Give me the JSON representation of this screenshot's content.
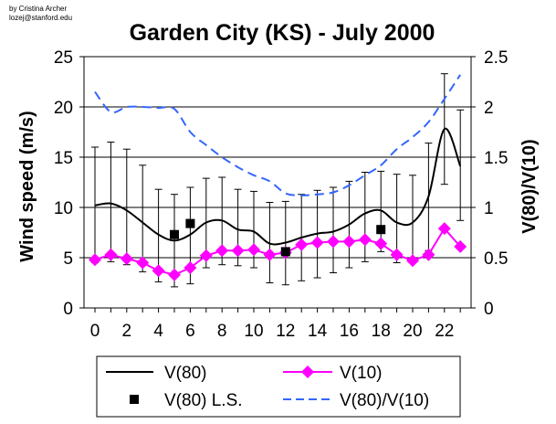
{
  "credit": [
    "by Cristina Archer",
    "lozej@stanford.edu"
  ],
  "chart_data": {
    "type": "line",
    "title": "Garden City (KS) - July 2000",
    "xlabel": "",
    "ylabel": "Wind speed (m/s)",
    "y2label": "V(80)/V(10)",
    "x": [
      0,
      1,
      2,
      3,
      4,
      5,
      6,
      7,
      8,
      9,
      10,
      11,
      12,
      13,
      14,
      15,
      16,
      17,
      18,
      19,
      20,
      21,
      22,
      23
    ],
    "xticks": [
      "0",
      "2",
      "4",
      "6",
      "8",
      "10",
      "12",
      "14",
      "16",
      "18",
      "20",
      "22"
    ],
    "xlim": [
      0,
      23
    ],
    "ylim": [
      0,
      25
    ],
    "yticks": [
      "0",
      "5",
      "10",
      "15",
      "20",
      "25"
    ],
    "y2lim": [
      0,
      2.5
    ],
    "y2ticks": [
      "0",
      "0.5",
      "1",
      "1.5",
      "2",
      "2.5"
    ],
    "grid": "horizontal",
    "series": [
      {
        "name": "V(80)",
        "axis": "left",
        "style": "line",
        "color": "#000000",
        "values": [
          10.2,
          10.4,
          9.7,
          8.5,
          7.3,
          6.7,
          7.3,
          8.5,
          8.7,
          7.8,
          7.6,
          6.4,
          6.5,
          7.0,
          7.4,
          7.6,
          8.3,
          9.4,
          9.7,
          8.5,
          8.5,
          11.1,
          17.8,
          14.1
        ],
        "error_upper": [
          16.0,
          16.5,
          15.8,
          14.2,
          11.8,
          11.3,
          12.0,
          12.9,
          13.0,
          11.8,
          11.6,
          10.5,
          10.6,
          11.3,
          11.7,
          12.0,
          12.6,
          13.5,
          13.6,
          13.3,
          13.2,
          16.4,
          23.3,
          19.7
        ],
        "error_lower": [
          4.5,
          4.6,
          4.3,
          3.6,
          2.6,
          2.1,
          2.4,
          4.0,
          4.3,
          4.2,
          4.0,
          2.5,
          2.3,
          2.7,
          3.0,
          3.5,
          4.0,
          4.6,
          5.6,
          4.5,
          4.8,
          5.7,
          12.3,
          8.7
        ]
      },
      {
        "name": "V(10)",
        "axis": "left",
        "style": "line-diamond",
        "color": "#ff00ff",
        "values": [
          4.8,
          5.3,
          4.9,
          4.5,
          3.7,
          3.3,
          4.0,
          5.2,
          5.7,
          5.7,
          5.8,
          5.3,
          5.5,
          6.3,
          6.5,
          6.6,
          6.6,
          6.8,
          6.4,
          5.3,
          4.7,
          5.3,
          7.9,
          6.1
        ]
      },
      {
        "name": "V(80) L.S.",
        "axis": "left",
        "style": "square",
        "color": "#000000",
        "x": [
          5,
          6,
          12,
          18
        ],
        "values": [
          7.3,
          8.4,
          5.6,
          7.8
        ]
      },
      {
        "name": "V(80)/V(10)",
        "axis": "right",
        "style": "dashed",
        "color": "#3366ff",
        "values": [
          2.15,
          1.95,
          2.0,
          2.0,
          1.99,
          1.98,
          1.75,
          1.62,
          1.5,
          1.4,
          1.32,
          1.26,
          1.14,
          1.12,
          1.13,
          1.15,
          1.22,
          1.32,
          1.42,
          1.58,
          1.7,
          1.85,
          2.08,
          2.32
        ]
      }
    ],
    "legend": {
      "position": "bottom",
      "entries": [
        "V(80)",
        "V(10)",
        "V(80) L.S.",
        "V(80)/V(10)"
      ]
    }
  }
}
